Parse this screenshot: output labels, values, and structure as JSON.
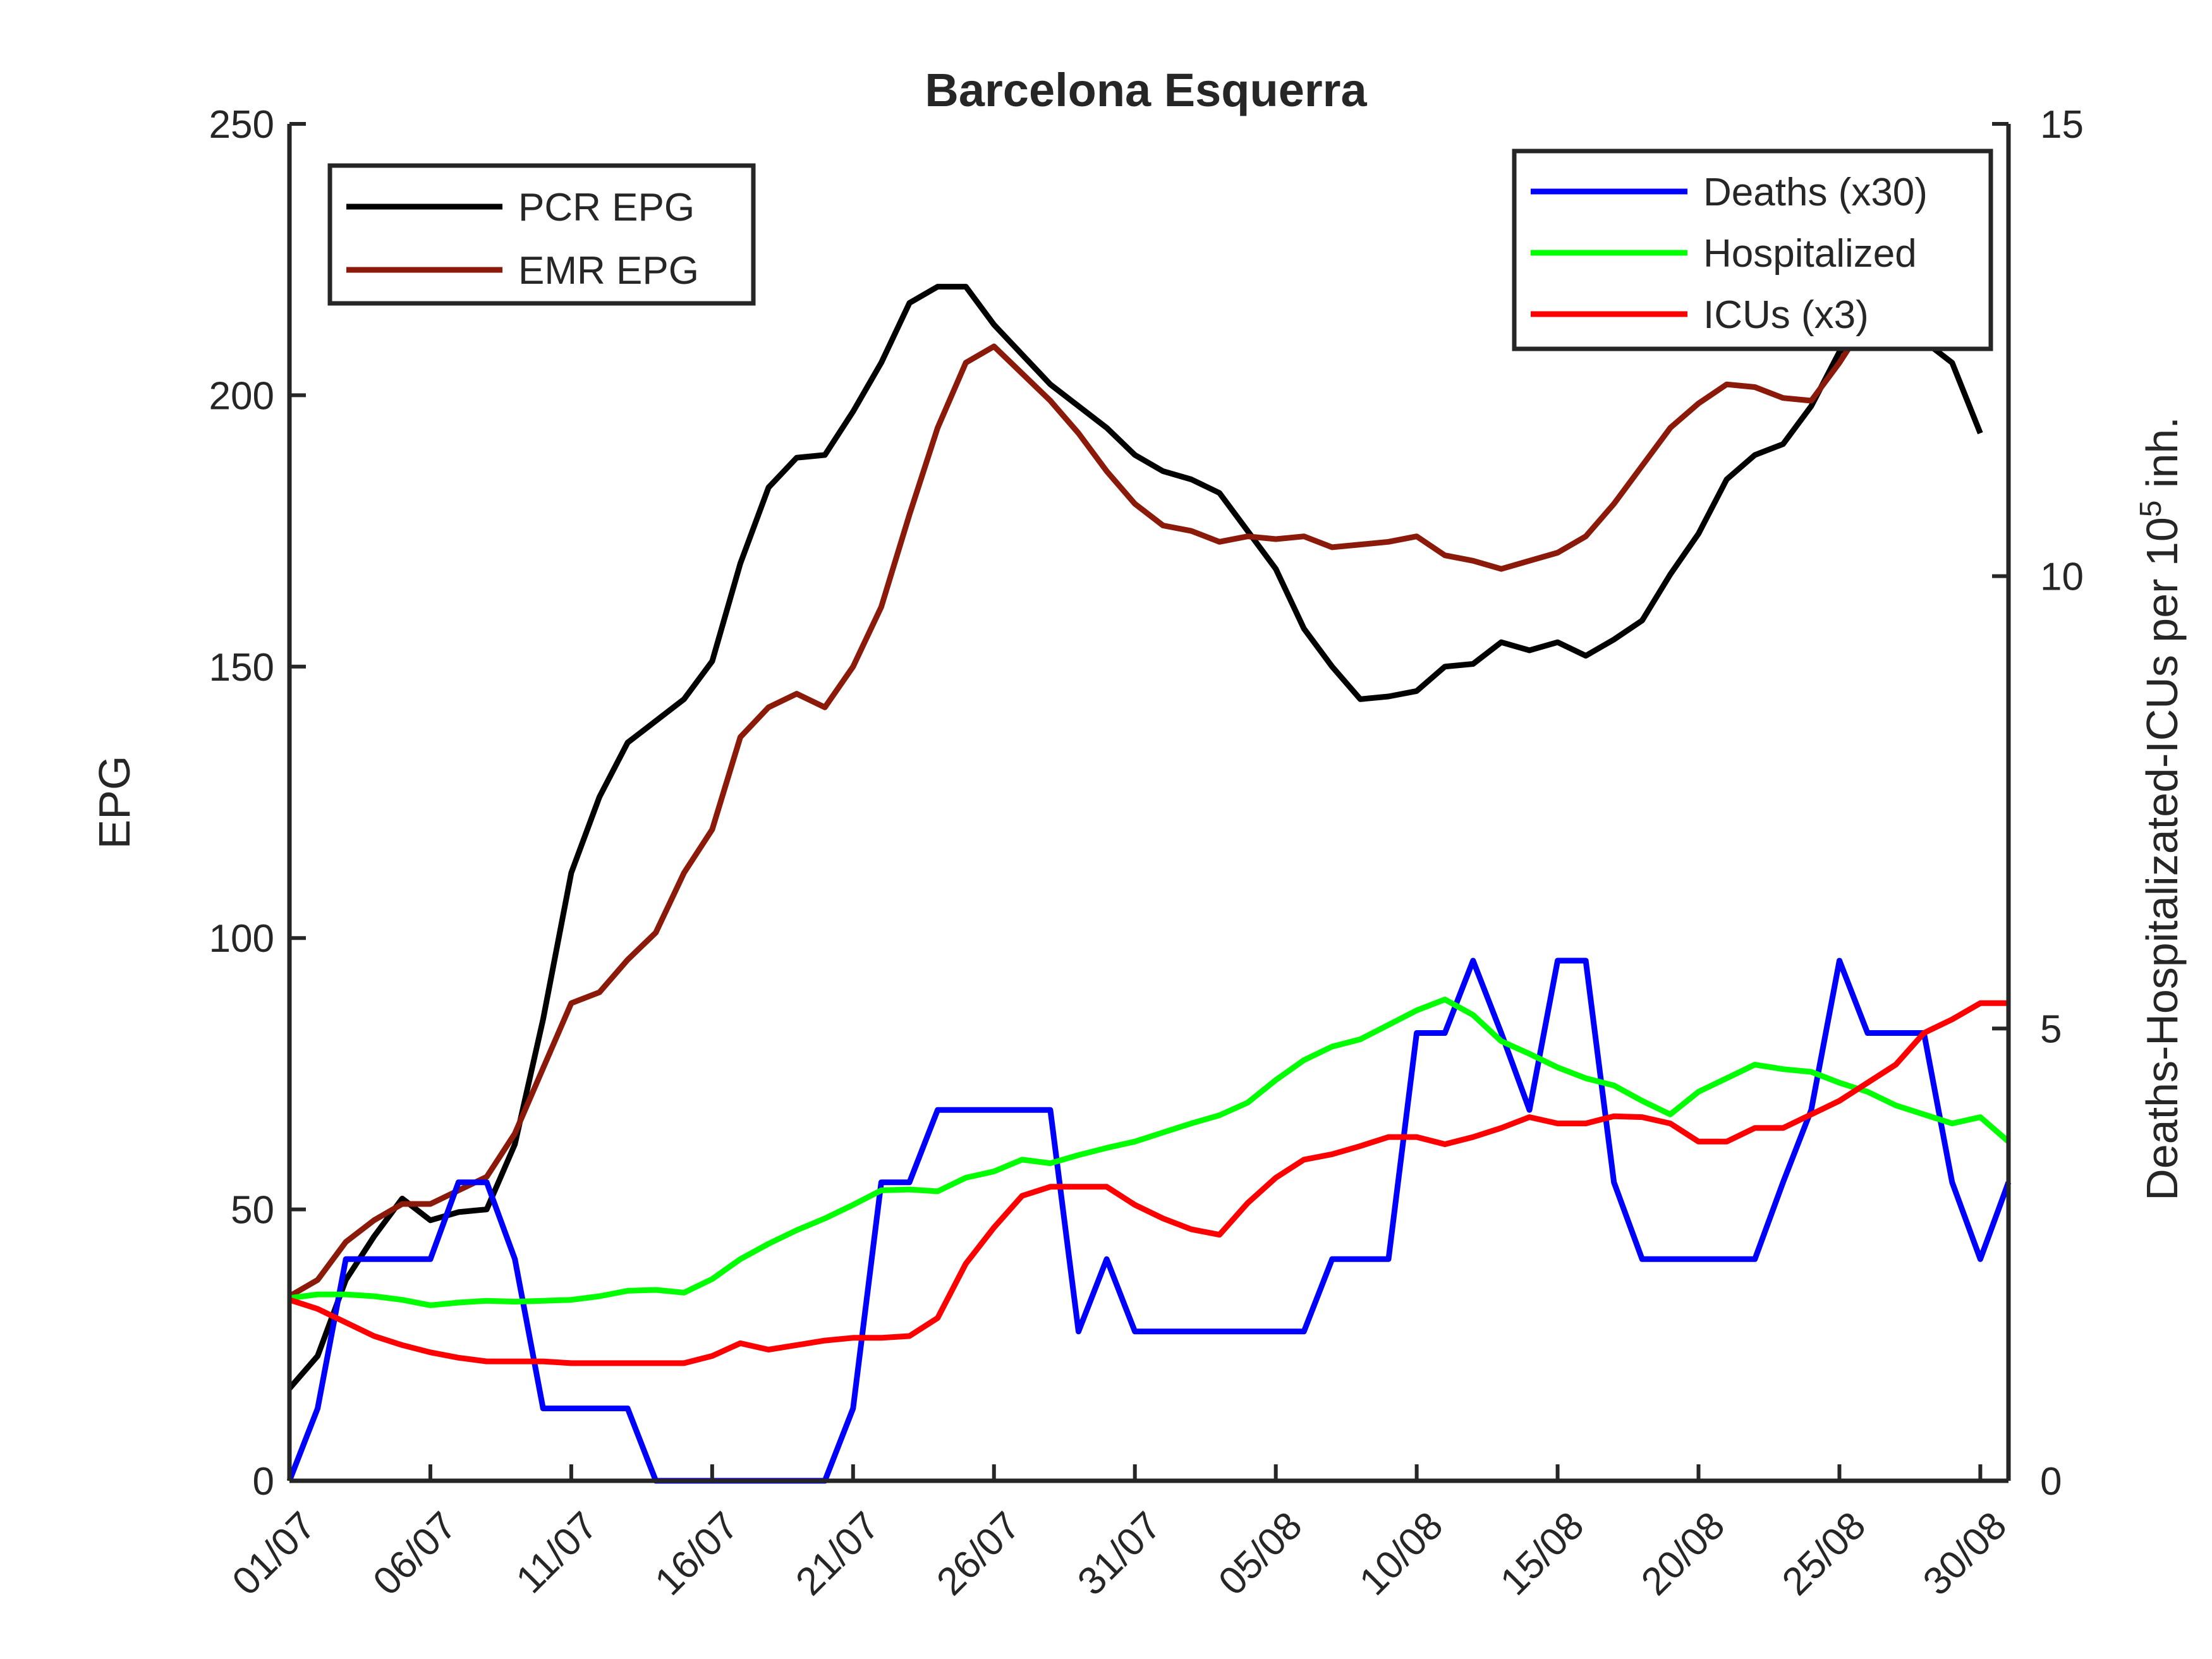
{
  "chart_data": {
    "type": "line",
    "title": "Barcelona Esquerra",
    "x_tick_labels": [
      "01/07",
      "06/07",
      "11/07",
      "16/07",
      "21/07",
      "26/07",
      "31/07",
      "05/08",
      "10/08",
      "15/08",
      "20/08",
      "25/08",
      "30/08"
    ],
    "x_tick_days": [
      0,
      5,
      10,
      15,
      20,
      25,
      30,
      35,
      40,
      45,
      50,
      55,
      60
    ],
    "x_start": "01/07",
    "xlim": [
      0,
      61
    ],
    "left_axis": {
      "label": "EPG",
      "ylim": [
        0,
        250
      ],
      "ticks": [
        0,
        50,
        100,
        150,
        200,
        250
      ]
    },
    "right_axis": {
      "label_prefix": "Deaths-Hospitalizated-ICUs per 10",
      "label_sup": "5",
      "label_suffix": " inh.",
      "ylim": [
        0,
        15
      ],
      "ticks": [
        0,
        5,
        10,
        15
      ]
    },
    "series": [
      {
        "name": "PCR EPG",
        "axis": "left",
        "color": "#000000",
        "values": [
          17,
          23,
          37,
          45,
          52,
          48,
          49.5,
          50,
          62,
          85,
          112,
          126,
          136,
          140,
          144,
          151,
          169,
          183,
          188.5,
          189,
          197,
          206,
          217,
          220,
          220,
          213,
          207.5,
          202,
          198,
          194,
          189,
          186,
          184.5,
          182,
          175,
          168,
          157,
          150,
          144,
          144.5,
          145.5,
          150,
          150.5,
          154.5,
          153,
          154.5,
          152,
          155,
          158.5,
          167,
          174.5,
          184.5,
          189,
          191,
          198,
          208,
          212,
          211,
          210,
          206,
          193
        ]
      },
      {
        "name": "EMR EPG",
        "axis": "left",
        "color": "#8b1a0a",
        "values": [
          34,
          37,
          44,
          48,
          51,
          51,
          53.5,
          56,
          64,
          76,
          88,
          90,
          96,
          101,
          112,
          120,
          137,
          142.5,
          145,
          142.5,
          150,
          161,
          178,
          194,
          206,
          209,
          204,
          199,
          193,
          186,
          180,
          176,
          175,
          173,
          174,
          173.5,
          174,
          172,
          172.5,
          173,
          174,
          170.5,
          169.5,
          168,
          169.5,
          171,
          174,
          180,
          187,
          194,
          198.5,
          202,
          201.5,
          199.5,
          199,
          206,
          214,
          219,
          224,
          226,
          222
        ]
      },
      {
        "name": "Deaths (x30)",
        "axis": "right",
        "color": "#0000ff",
        "values": [
          0,
          0.8,
          2.45,
          2.45,
          2.45,
          2.45,
          3.3,
          3.3,
          2.45,
          0.8,
          0.8,
          0.8,
          0.8,
          0,
          0,
          0,
          0,
          0,
          0,
          0,
          0.8,
          3.3,
          3.3,
          4.1,
          4.1,
          4.1,
          4.1,
          4.1,
          1.65,
          2.45,
          1.65,
          1.65,
          1.65,
          1.65,
          1.65,
          1.65,
          1.65,
          2.45,
          2.45,
          2.45,
          4.95,
          4.95,
          5.75,
          4.95,
          4.1,
          5.75,
          5.75,
          3.3,
          2.45,
          2.45,
          2.45,
          2.45,
          2.45,
          3.3,
          4.1,
          5.75,
          4.95,
          4.95,
          4.95,
          3.3,
          2.45,
          3.3
        ]
      },
      {
        "name": "Hospitalized",
        "axis": "right",
        "color": "#00ff00",
        "values": [
          2.02,
          2.06,
          2.06,
          2.04,
          2,
          1.94,
          1.97,
          1.99,
          1.98,
          1.99,
          2,
          2.04,
          2.1,
          2.11,
          2.08,
          2.23,
          2.45,
          2.62,
          2.77,
          2.9,
          3.05,
          3.21,
          3.22,
          3.2,
          3.35,
          3.42,
          3.55,
          3.51,
          3.6,
          3.68,
          3.75,
          3.85,
          3.95,
          4.04,
          4.18,
          4.43,
          4.65,
          4.8,
          4.88,
          5.04,
          5.2,
          5.32,
          5.15,
          4.86,
          4.72,
          4.57,
          4.45,
          4.37,
          4.2,
          4.05,
          4.3,
          4.45,
          4.6,
          4.55,
          4.52,
          4.4,
          4.3,
          4.15,
          4.05,
          3.95,
          4.02,
          3.75
        ]
      },
      {
        "name": "ICUs (x3)",
        "axis": "right",
        "color": "#ff0000",
        "values": [
          2,
          1.9,
          1.75,
          1.6,
          1.5,
          1.42,
          1.36,
          1.32,
          1.32,
          1.32,
          1.3,
          1.3,
          1.3,
          1.3,
          1.3,
          1.38,
          1.52,
          1.45,
          1.5,
          1.55,
          1.58,
          1.58,
          1.6,
          1.8,
          2.4,
          2.8,
          3.15,
          3.25,
          3.25,
          3.25,
          3.05,
          2.9,
          2.78,
          2.72,
          3.07,
          3.35,
          3.55,
          3.61,
          3.7,
          3.8,
          3.8,
          3.72,
          3.8,
          3.9,
          4.02,
          3.95,
          3.95,
          4.03,
          4.02,
          3.95,
          3.75,
          3.75,
          3.9,
          3.9,
          4.05,
          4.2,
          4.4,
          4.6,
          4.95,
          5.1,
          5.28,
          5.28
        ]
      }
    ],
    "legends": [
      {
        "position": "top-left",
        "entries": [
          "PCR EPG",
          "EMR EPG"
        ]
      },
      {
        "position": "top-right",
        "entries": [
          "Deaths (x30)",
          "Hospitalized",
          "ICUs (x3)"
        ]
      }
    ],
    "grid": false
  }
}
